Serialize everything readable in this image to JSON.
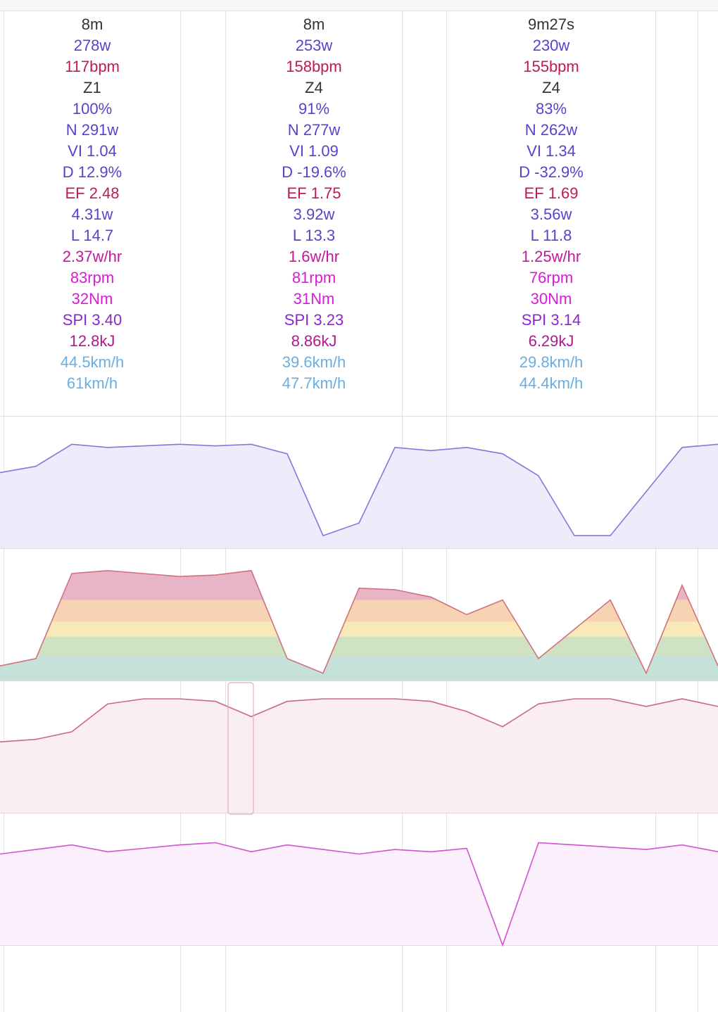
{
  "intervals": [
    {
      "duration": "8m",
      "power": "278w",
      "hr": "117bpm",
      "zone": "Z1",
      "pct": "100%",
      "np": "N 291w",
      "vi": "VI 1.04",
      "decoupling": "D 12.9%",
      "ef": "EF 2.48",
      "wkg": "4.31w",
      "load": "L 14.7",
      "wphr": "2.37w/hr",
      "cadence": "83rpm",
      "torque": "32Nm",
      "spi": "SPI 3.40",
      "work": "12.8kJ",
      "avg_speed": "44.5km/h",
      "max_speed": "61km/h"
    },
    {
      "duration": "8m",
      "power": "253w",
      "hr": "158bpm",
      "zone": "Z4",
      "pct": "91%",
      "np": "N 277w",
      "vi": "VI 1.09",
      "decoupling": "D -19.6%",
      "ef": "EF 1.75",
      "wkg": "3.92w",
      "load": "L 13.3",
      "wphr": "1.6w/hr",
      "cadence": "81rpm",
      "torque": "31Nm",
      "spi": "SPI 3.23",
      "work": "8.86kJ",
      "avg_speed": "39.6km/h",
      "max_speed": "47.7km/h"
    },
    {
      "duration": "9m27s",
      "power": "230w",
      "hr": "155bpm",
      "zone": "Z4",
      "pct": "83%",
      "np": "N 262w",
      "vi": "VI 1.34",
      "decoupling": "D -32.9%",
      "ef": "EF 1.69",
      "wkg": "3.56w",
      "load": "L 11.8",
      "wphr": "1.25w/hr",
      "cadence": "76rpm",
      "torque": "30Nm",
      "spi": "SPI 3.14",
      "work": "6.29kJ",
      "avg_speed": "29.8km/h",
      "max_speed": "44.4km/h"
    }
  ],
  "colors": {
    "duration": "#333333",
    "power": "#5b3fd0",
    "hr": "#c2185b",
    "zone": "#333333",
    "pct": "#5b3fd0",
    "np": "#5b3fd0",
    "vi": "#5b3fd0",
    "decoupling": "#5b3fd0",
    "ef": "#c2185b",
    "wkg": "#5b3fd0",
    "load": "#5b3fd0",
    "wphr": "#c2189d",
    "cadence": "#d81bd8",
    "torque": "#d81bd8",
    "spi": "#8e24d0",
    "work": "#b0188c",
    "avg_speed": "#6aaee0",
    "max_speed": "#6aaee0",
    "power_line": "#8a74db",
    "power_fill": "#eeecfb",
    "target_line": "#8aa8ec",
    "hr_zone_red": "#e8b5c6",
    "hr_zone_orange": "#f6d3b2",
    "hr_zone_yellow": "#f9e9b8",
    "hr_zone_green": "#cfe3c4",
    "hr_zone_teal": "#c6e0da",
    "hr_line": "#d4707b",
    "cadence_line": "#d252d2",
    "cadence_fill": "#fbf0fb",
    "speed_line": "#cc6688",
    "speed_fill": "#fbeef2",
    "highlight_box": "#e8aab8"
  },
  "chart_data": [
    {
      "type": "line",
      "x": [
        0,
        5,
        10,
        15,
        20,
        25,
        30,
        35,
        40,
        45,
        50,
        55,
        60,
        65,
        70,
        75,
        80,
        85,
        90,
        95,
        100
      ],
      "series": [
        {
          "values": [
            240,
            260,
            330,
            320,
            325,
            330,
            325,
            330,
            300,
            40,
            80,
            320,
            310,
            320,
            300,
            230,
            40,
            40,
            180,
            320,
            330
          ]
        }
      ],
      "ylim": [
        0,
        400
      ]
    },
    {
      "type": "area",
      "x": [
        0,
        5,
        10,
        15,
        20,
        25,
        30,
        35,
        40,
        45,
        50,
        55,
        60,
        65,
        70,
        75,
        80,
        85,
        90,
        95,
        100
      ],
      "series": [
        {
          "values": [
            105,
            110,
            168,
            170,
            168,
            166,
            167,
            170,
            110,
            100,
            158,
            157,
            152,
            140,
            150,
            110,
            130,
            150,
            100,
            160,
            105
          ]
        }
      ],
      "ylim": [
        95,
        180
      ]
    },
    {
      "type": "area",
      "x": [
        0,
        5,
        10,
        15,
        20,
        25,
        30,
        35,
        40,
        45,
        50,
        55,
        60,
        65,
        70,
        75,
        80,
        85,
        90,
        95,
        100
      ],
      "series": [
        {
          "values": [
            28,
            29,
            32,
            43,
            45,
            45,
            44,
            38,
            44,
            45,
            45,
            45,
            44,
            40,
            34,
            43,
            45,
            45,
            42,
            45,
            42
          ]
        }
      ],
      "ylim": [
        0,
        50
      ]
    },
    {
      "type": "line",
      "x": [
        0,
        5,
        10,
        15,
        20,
        25,
        30,
        35,
        40,
        45,
        50,
        55,
        60,
        65,
        70,
        75,
        80,
        85,
        90,
        95,
        100
      ],
      "series": [
        {
          "values": [
            80,
            84,
            88,
            82,
            85,
            88,
            90,
            82,
            88,
            84,
            80,
            84,
            82,
            85,
            0,
            90,
            88,
            86,
            84,
            88,
            82
          ]
        }
      ],
      "ylim": [
        0,
        110
      ]
    }
  ]
}
